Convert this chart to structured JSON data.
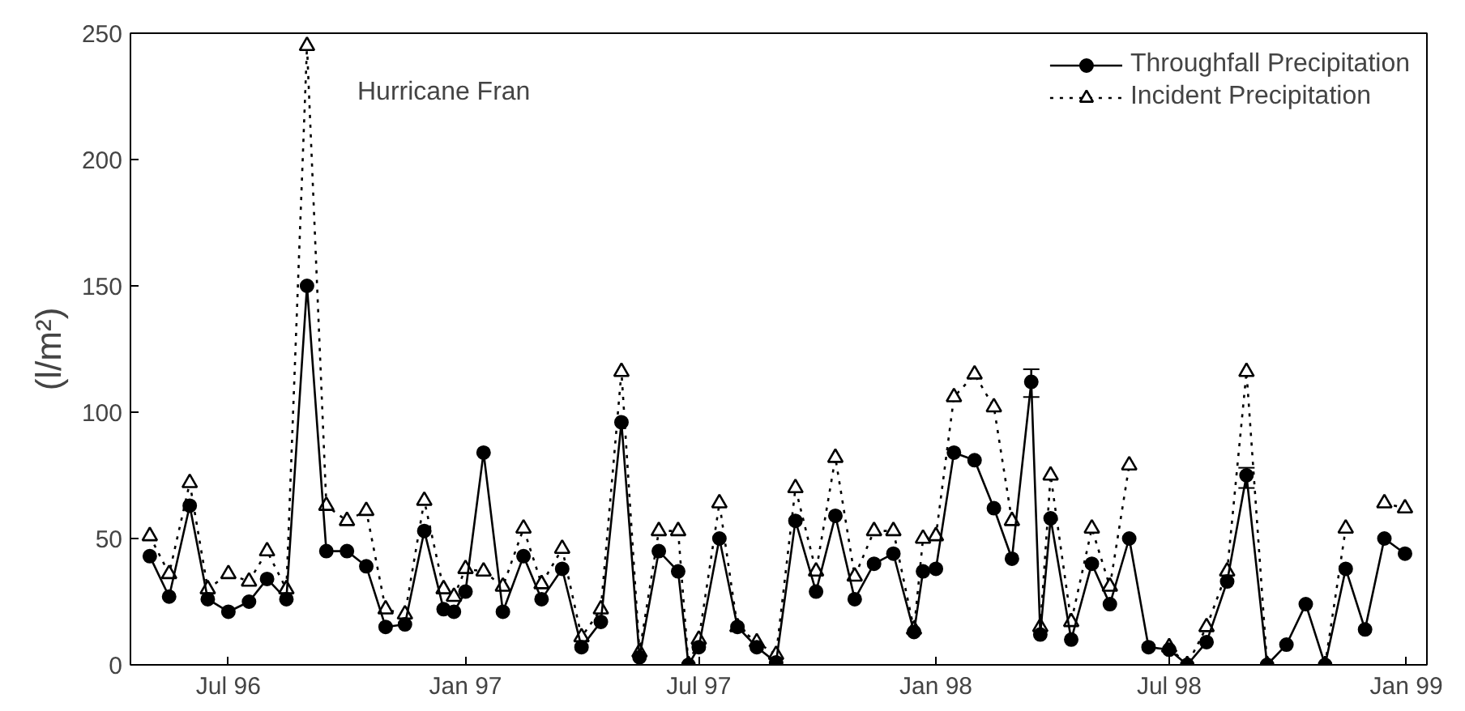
{
  "chart_data": {
    "type": "line",
    "ylabel": "(l/m²)",
    "annotations": [
      "Hurricane Fran"
    ],
    "x": [
      "1996-05-01",
      "1996-05-16",
      "1996-06-01",
      "1996-06-15",
      "1996-07-01",
      "1996-07-17",
      "1996-07-31",
      "1996-08-15",
      "1996-08-31",
      "1996-09-15",
      "1996-10-01",
      "1996-10-16",
      "1996-10-31",
      "1996-11-15",
      "1996-11-30",
      "1996-12-15",
      "1996-12-23",
      "1997-01-01",
      "1997-01-15",
      "1997-01-30",
      "1997-02-15",
      "1997-03-01",
      "1997-03-17",
      "1997-04-01",
      "1997-04-16",
      "1997-05-02",
      "1997-05-16",
      "1997-05-31",
      "1997-06-15",
      "1997-06-23",
      "1997-07-01",
      "1997-07-17",
      "1997-07-31",
      "1997-08-15",
      "1997-08-30",
      "1997-09-14",
      "1997-09-30",
      "1997-10-15",
      "1997-10-30",
      "1997-11-14",
      "1997-11-29",
      "1997-12-15",
      "1997-12-22",
      "1998-01-01",
      "1998-01-15",
      "1998-01-31",
      "1998-02-15",
      "1998-03-01",
      "1998-03-16",
      "1998-03-23",
      "1998-03-31",
      "1998-04-16",
      "1998-05-02",
      "1998-05-16",
      "1998-05-31",
      "1998-06-15",
      "1998-07-01",
      "1998-07-15",
      "1998-07-30",
      "1998-08-15",
      "1998-08-30",
      "1998-09-15",
      "1998-09-30",
      "1998-10-15",
      "1998-10-30",
      "1998-11-15",
      "1998-11-30",
      "1998-12-15",
      "1998-12-31"
    ],
    "series": [
      {
        "name": "Throughfall Precipitation",
        "color": "#000000",
        "marker": "circle",
        "line_style": "solid",
        "values": [
          43,
          27,
          63,
          26,
          21,
          25,
          34,
          26,
          150,
          45,
          45,
          39,
          15,
          16,
          53,
          22,
          21,
          29,
          84,
          21,
          43,
          26,
          38,
          7,
          17,
          96,
          3,
          45,
          37,
          0,
          7,
          50,
          15,
          7,
          1,
          57,
          29,
          59,
          26,
          40,
          44,
          13,
          37,
          38,
          84,
          81,
          62,
          42,
          112,
          12,
          58,
          10,
          40,
          24,
          50,
          7,
          6,
          0,
          9,
          33,
          75,
          0,
          8,
          24,
          0,
          38,
          14,
          50,
          44
        ],
        "errors": [
          null,
          null,
          null,
          null,
          null,
          null,
          null,
          null,
          null,
          null,
          null,
          null,
          null,
          null,
          null,
          null,
          null,
          null,
          null,
          null,
          null,
          null,
          null,
          null,
          null,
          null,
          null,
          null,
          null,
          null,
          null,
          null,
          null,
          null,
          null,
          null,
          null,
          null,
          null,
          null,
          null,
          null,
          null,
          null,
          null,
          null,
          null,
          null,
          [
            106,
            117
          ],
          null,
          null,
          null,
          null,
          null,
          null,
          null,
          null,
          null,
          null,
          null,
          [
            70,
            78
          ],
          null,
          null,
          null,
          null,
          null,
          null,
          null,
          null
        ]
      },
      {
        "name": "Incident Precipitation",
        "color": "#000000",
        "marker": "triangle",
        "line_style": "dotted",
        "values": [
          51,
          36,
          72,
          30,
          36,
          33,
          45,
          30,
          245,
          63,
          57,
          61,
          22,
          20,
          65,
          30,
          27,
          38,
          37,
          31,
          54,
          32,
          46,
          11,
          22,
          116,
          5,
          53,
          53,
          0,
          10,
          64,
          15,
          9,
          4,
          70,
          37,
          82,
          35,
          53,
          53,
          14,
          50,
          51,
          106,
          115,
          102,
          57,
          null,
          15,
          75,
          17,
          54,
          31,
          79,
          null,
          7,
          0,
          15,
          37,
          116,
          0,
          null,
          null,
          0,
          54,
          null,
          64,
          62
        ]
      }
    ],
    "xlim": [
      "1996-04-16",
      "1999-01-17"
    ],
    "xticks": [
      {
        "value": "1996-07-01",
        "label": "Jul 96"
      },
      {
        "value": "1997-01-01",
        "label": "Jan 97"
      },
      {
        "value": "1997-07-01",
        "label": "Jul 97"
      },
      {
        "value": "1998-01-01",
        "label": "Jan 98"
      },
      {
        "value": "1998-07-01",
        "label": "Jul 98"
      },
      {
        "value": "1999-01-01",
        "label": "Jan 99"
      }
    ],
    "ylim": [
      0,
      250
    ],
    "yticks": [
      0,
      50,
      100,
      150,
      200,
      250
    ],
    "grid": false,
    "legend": "top right"
  }
}
